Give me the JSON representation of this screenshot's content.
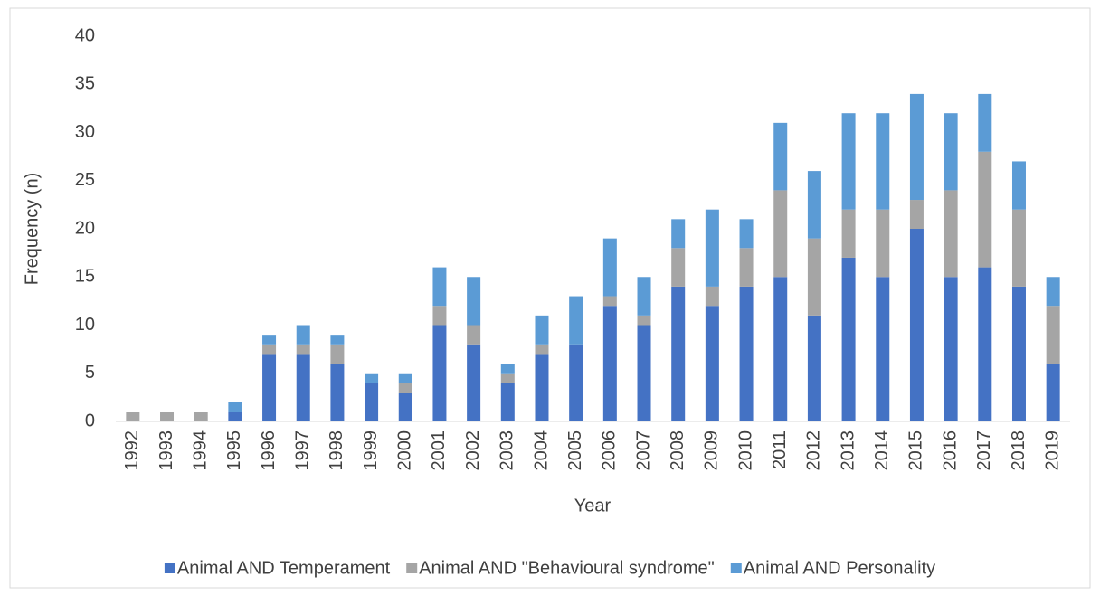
{
  "chart_data": {
    "type": "stacked_bar",
    "x_label": "Year",
    "y_label": "Frequency (n)",
    "categories": [
      "1992",
      "1993",
      "1994",
      "1995",
      "1996",
      "1997",
      "1998",
      "1999",
      "2000",
      "2001",
      "2002",
      "2003",
      "2004",
      "2005",
      "2006",
      "2007",
      "2008",
      "2009",
      "2010",
      "2011",
      "2012",
      "2013",
      "2014",
      "2015",
      "2016",
      "2017",
      "2018",
      "2019"
    ],
    "series": [
      {
        "name": "Animal AND Temperament",
        "color": "#4472c4",
        "values": [
          0,
          0,
          0,
          1,
          7,
          7,
          6,
          4,
          3,
          10,
          8,
          4,
          7,
          8,
          12,
          10,
          14,
          12,
          14,
          15,
          11,
          17,
          15,
          20,
          15,
          16,
          14,
          6
        ]
      },
      {
        "name": "Animal AND \"Behavioural syndrome\"",
        "color": "#a5a5a5",
        "values": [
          1,
          1,
          1,
          0,
          1,
          1,
          2,
          0,
          1,
          2,
          2,
          1,
          1,
          0,
          1,
          1,
          4,
          2,
          4,
          9,
          8,
          5,
          7,
          3,
          9,
          12,
          8,
          6
        ]
      },
      {
        "name": "Animal AND Personality",
        "color": "#5b9bd5",
        "values": [
          0,
          0,
          0,
          1,
          1,
          2,
          1,
          1,
          1,
          4,
          5,
          1,
          3,
          5,
          6,
          4,
          3,
          8,
          3,
          7,
          7,
          10,
          10,
          11,
          8,
          6,
          5,
          3
        ]
      }
    ],
    "ylim": [
      0,
      40
    ],
    "yticks": [
      0,
      5,
      10,
      15,
      20,
      25,
      30,
      35,
      40
    ],
    "grid": false,
    "legend": "bottom"
  }
}
